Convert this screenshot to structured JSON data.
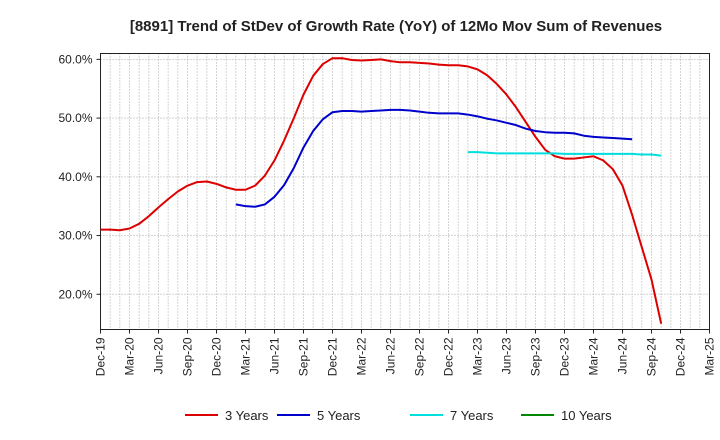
{
  "chart_data": {
    "type": "line",
    "title": "[8891]  Trend of StDev of Growth Rate (YoY) of 12Mo Mov Sum of Revenues",
    "xlabel": "",
    "ylabel": "",
    "x_range": [
      0,
      63
    ],
    "ylim": [
      14,
      61
    ],
    "y_ticks": [
      20,
      30,
      40,
      50,
      60
    ],
    "y_tick_labels": [
      "20.0%",
      "30.0%",
      "40.0%",
      "50.0%",
      "60.0%"
    ],
    "x_ticks": [
      0,
      3,
      6,
      9,
      12,
      15,
      18,
      21,
      24,
      27,
      30,
      33,
      36,
      39,
      42,
      45,
      48,
      51,
      54,
      57,
      60,
      63
    ],
    "x_tick_labels": [
      "Dec-19",
      "Mar-20",
      "Jun-20",
      "Sep-20",
      "Dec-20",
      "Mar-21",
      "Jun-21",
      "Sep-21",
      "Dec-21",
      "Mar-22",
      "Jun-22",
      "Sep-22",
      "Dec-22",
      "Mar-23",
      "Jun-23",
      "Sep-23",
      "Dec-23",
      "Mar-24",
      "Jun-24",
      "Sep-24",
      "Dec-24",
      "Mar-25"
    ],
    "grid": true,
    "legend_position": "bottom",
    "series": [
      {
        "name": "3 Years",
        "color": "#dd0000",
        "start": 0,
        "values": [
          31.0,
          31.0,
          30.9,
          31.2,
          32.0,
          33.3,
          34.8,
          36.2,
          37.5,
          38.5,
          39.1,
          39.2,
          38.8,
          38.2,
          37.8,
          37.8,
          38.5,
          40.2,
          42.8,
          46.2,
          50.0,
          54.0,
          57.2,
          59.2,
          60.2,
          60.2,
          59.9,
          59.8,
          59.9,
          60.0,
          59.7,
          59.5,
          59.5,
          59.4,
          59.3,
          59.1,
          59.0,
          59.0,
          58.8,
          58.3,
          57.3,
          55.8,
          54.0,
          51.8,
          49.3,
          46.8,
          44.6,
          43.5,
          43.1,
          43.1,
          43.3,
          43.5,
          42.8,
          41.3,
          38.5,
          33.5,
          28.0,
          22.5,
          15.0
        ]
      },
      {
        "name": "5 Years",
        "color": "#0000cc",
        "start": 14,
        "values": [
          35.3,
          35.0,
          34.9,
          35.3,
          36.6,
          38.6,
          41.5,
          45.0,
          47.8,
          49.8,
          51.0,
          51.2,
          51.2,
          51.1,
          51.2,
          51.3,
          51.4,
          51.4,
          51.3,
          51.1,
          50.9,
          50.8,
          50.8,
          50.8,
          50.6,
          50.3,
          49.9,
          49.6,
          49.2,
          48.8,
          48.2,
          47.8,
          47.6,
          47.5,
          47.5,
          47.4,
          47.0,
          46.8,
          46.7,
          46.6,
          46.5,
          46.4
        ]
      },
      {
        "name": "7 Years",
        "color": "#00dddd",
        "start": 38,
        "values": [
          44.2,
          44.2,
          44.1,
          44.0,
          44.0,
          44.0,
          44.0,
          44.0,
          44.0,
          44.0,
          43.9,
          43.9,
          43.9,
          43.9,
          43.9,
          43.9,
          43.9,
          43.9,
          43.8,
          43.8,
          43.6
        ]
      },
      {
        "name": "10 Years",
        "color": "#008800",
        "start": 0,
        "values": []
      }
    ]
  }
}
